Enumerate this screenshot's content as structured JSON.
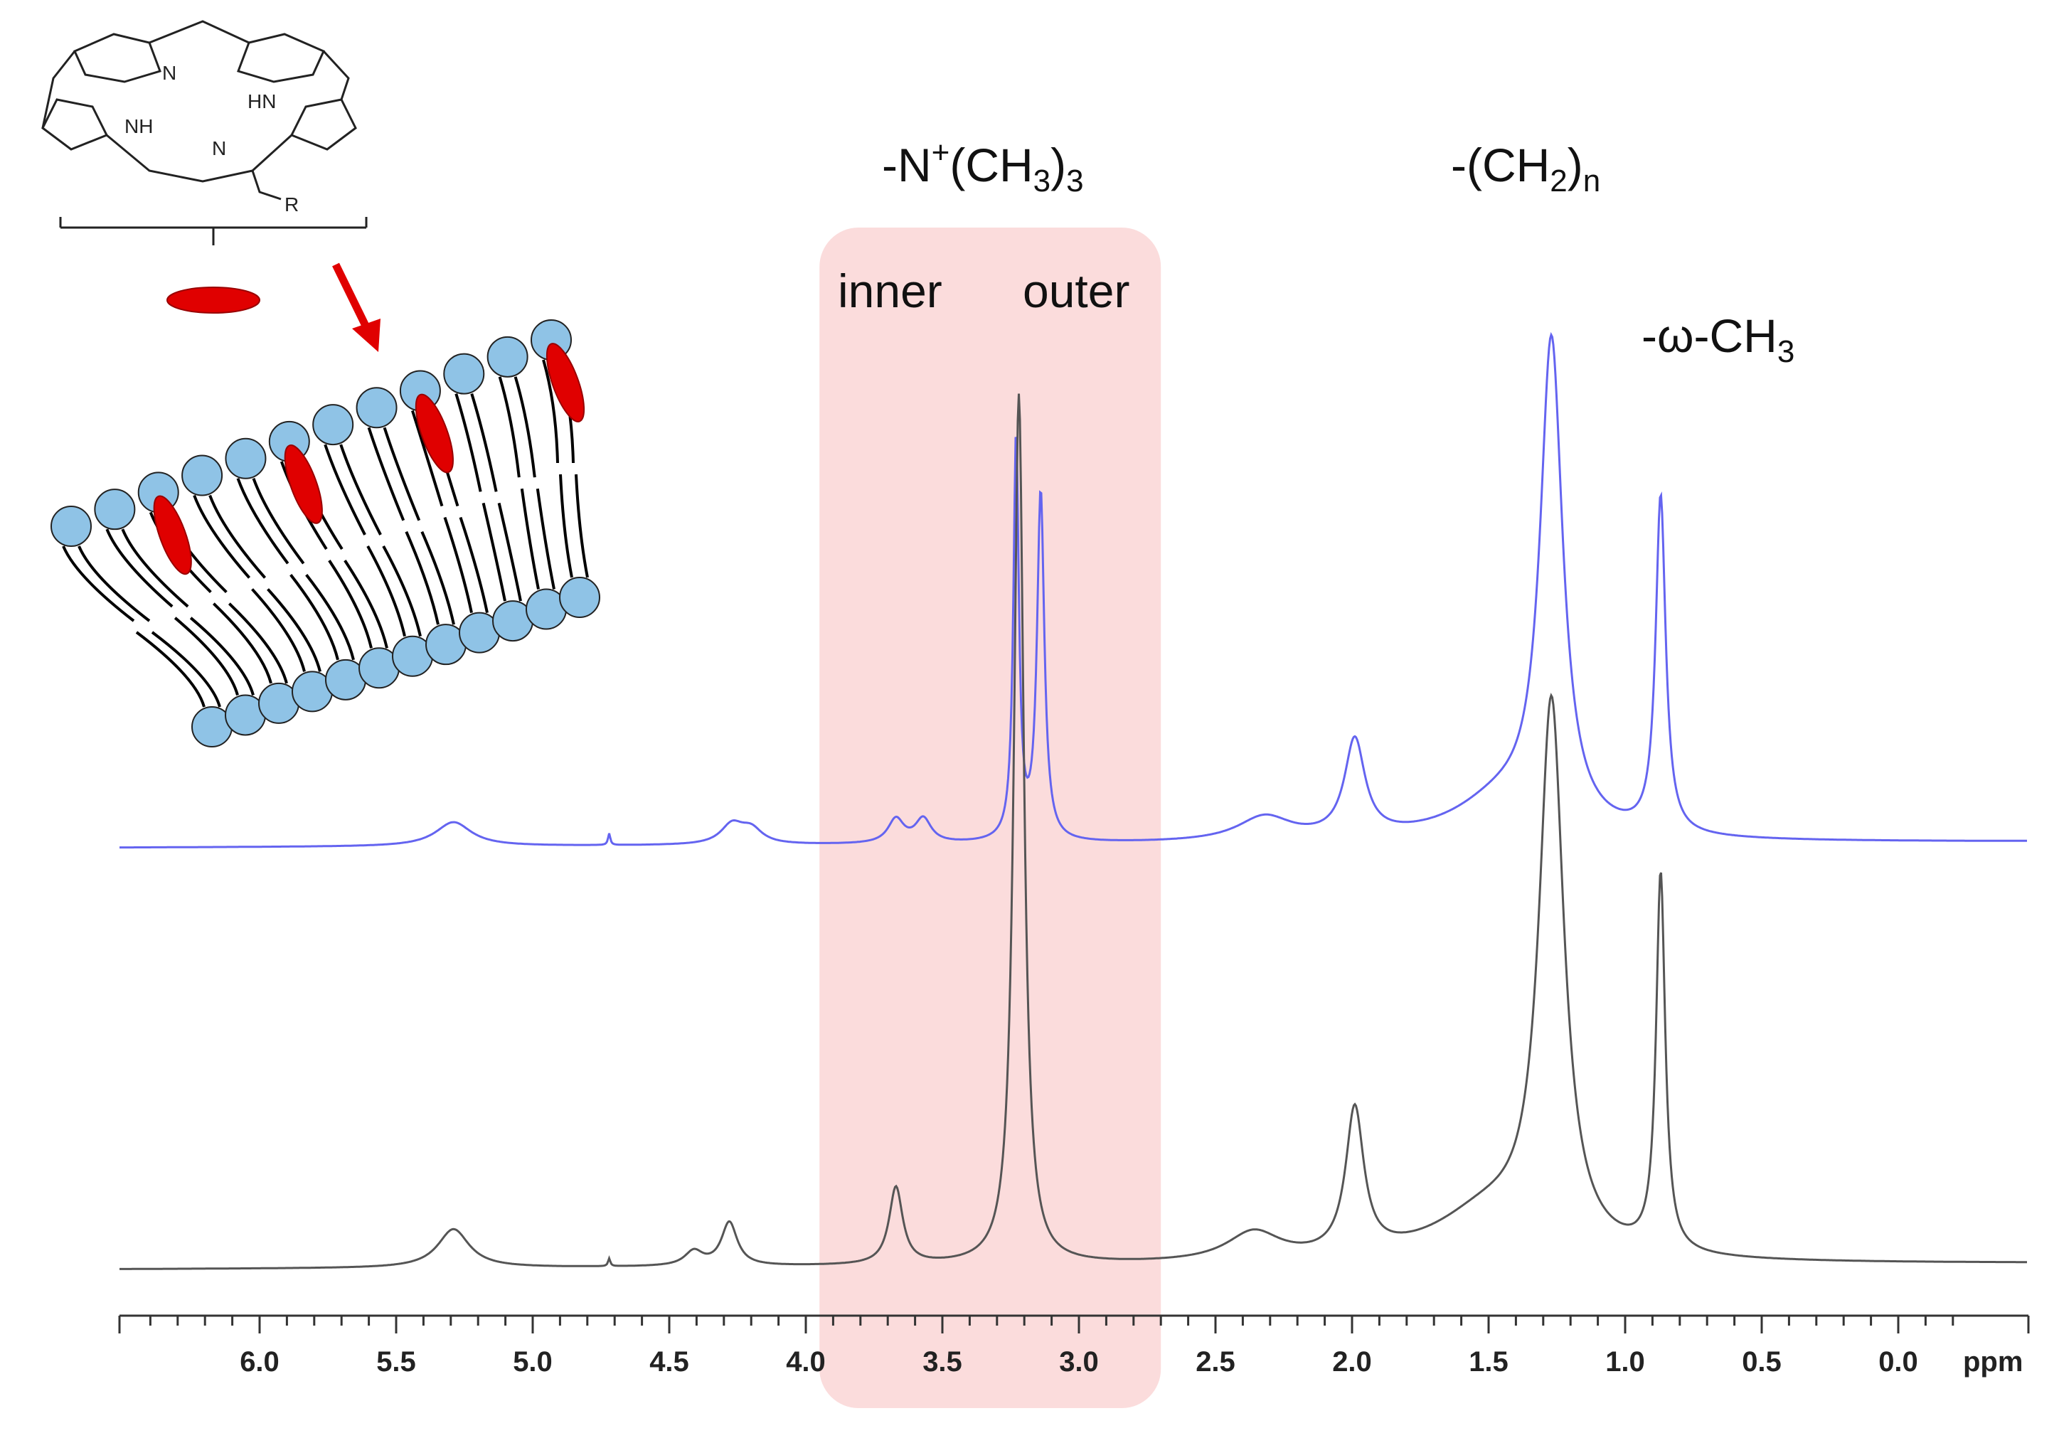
{
  "chart_data": {
    "type": "line",
    "title": "",
    "xlabel": "ppm",
    "ylabel": "",
    "x_reversed": true,
    "xlim": [
      -0.25,
      6.5
    ],
    "ylim": [
      0,
      1
    ],
    "x_ticks": [
      6.0,
      5.5,
      5.0,
      4.5,
      4.0,
      3.5,
      3.0,
      2.5,
      2.0,
      1.5,
      1.0,
      0.5,
      0.0
    ],
    "x_tick_labels": [
      "6.0",
      "5.5",
      "5.0",
      "4.5",
      "4.0",
      "3.5",
      "3.0",
      "2.5",
      "2.0",
      "1.5",
      "1.0",
      "0.5",
      "0.0"
    ],
    "highlight_region": {
      "x_from": 3.95,
      "x_to": 2.7,
      "color": "#fbdcdc"
    },
    "annotations": {
      "headgroup": "-N⁺(CH₃)₃",
      "inner": "inner",
      "outer": "outer",
      "methylene": "-(CH₂)ₙ",
      "terminal_methyl": "-ω-CH₃"
    },
    "series": [
      {
        "color": "#6464f0",
        "offset": 0.436,
        "baseline": 0.0,
        "peaks": [
          {
            "ppm": 5.29,
            "height": 0.025,
            "width": 0.08
          },
          {
            "ppm": 4.72,
            "height": 0.012,
            "width": 0.005
          },
          {
            "ppm": 4.27,
            "height": 0.02,
            "width": 0.05
          },
          {
            "ppm": 4.2,
            "height": 0.015,
            "width": 0.05
          },
          {
            "ppm": 3.67,
            "height": 0.025,
            "width": 0.035
          },
          {
            "ppm": 3.57,
            "height": 0.025,
            "width": 0.035
          },
          {
            "ppm": 3.23,
            "height": 0.418,
            "width": 0.012
          },
          {
            "ppm": 3.14,
            "height": 0.36,
            "width": 0.016
          },
          {
            "ppm": 2.32,
            "height": 0.025,
            "width": 0.12
          },
          {
            "ppm": 1.99,
            "height": 0.1,
            "width": 0.045
          },
          {
            "ppm": 1.27,
            "height": 0.5,
            "width": 0.05
          },
          {
            "ppm": 1.45,
            "height": 0.04,
            "width": 0.22
          },
          {
            "ppm": 0.87,
            "height": 0.348,
            "width": 0.022
          }
        ]
      },
      {
        "color": "#555555",
        "offset": 0.0,
        "baseline": 0.0,
        "peaks": [
          {
            "ppm": 5.29,
            "height": 0.04,
            "width": 0.07
          },
          {
            "ppm": 4.72,
            "height": 0.008,
            "width": 0.005
          },
          {
            "ppm": 4.41,
            "height": 0.015,
            "width": 0.04
          },
          {
            "ppm": 4.28,
            "height": 0.045,
            "width": 0.035
          },
          {
            "ppm": 3.67,
            "height": 0.08,
            "width": 0.03
          },
          {
            "ppm": 3.22,
            "height": 0.9,
            "width": 0.022
          },
          {
            "ppm": 2.36,
            "height": 0.03,
            "width": 0.12
          },
          {
            "ppm": 1.99,
            "height": 0.15,
            "width": 0.04
          },
          {
            "ppm": 1.27,
            "height": 0.56,
            "width": 0.055
          },
          {
            "ppm": 1.5,
            "height": 0.05,
            "width": 0.25
          },
          {
            "ppm": 0.87,
            "height": 0.39,
            "width": 0.02
          }
        ]
      }
    ]
  },
  "inset": {
    "ring_labels": [
      "N",
      "HN",
      "NH",
      "N",
      "R"
    ],
    "colors": {
      "headgroup": "#8fc3e6",
      "porphyrin": "#e00000",
      "tail": "#000000"
    }
  }
}
